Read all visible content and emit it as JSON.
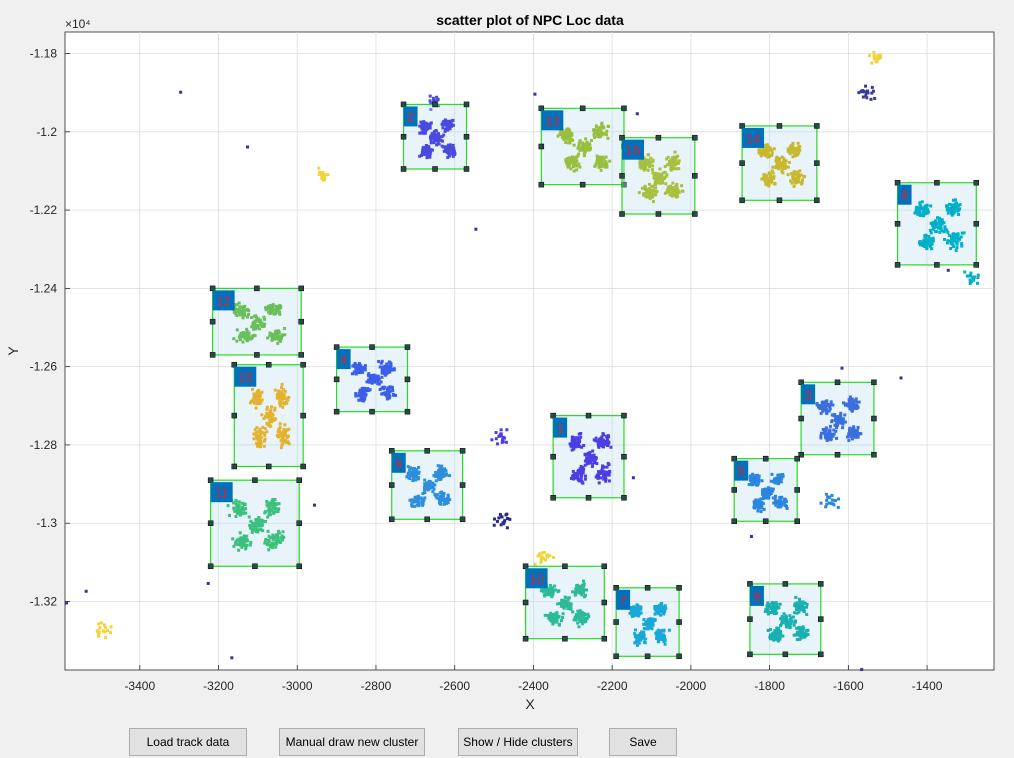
{
  "chart_data": {
    "type": "scatter",
    "title": "scatter plot of NPC Loc data",
    "xlabel": "X",
    "ylabel": "Y",
    "exponent_label": "×10⁴",
    "xlim": [
      -3590,
      -1230
    ],
    "ylim": [
      -1.3375,
      -1.1745
    ],
    "xticks": [
      -3400,
      -3200,
      -3000,
      -2800,
      -2600,
      -2400,
      -2200,
      -2000,
      -1800,
      -1600,
      -1400
    ],
    "yticks": [
      -1.32,
      -1.3,
      -1.28,
      -1.26,
      -1.24,
      -1.22,
      -1.2,
      -1.18
    ],
    "ytick_labels": [
      "-1.32",
      "-1.3",
      "-1.28",
      "-1.26",
      "-1.24",
      "-1.22",
      "-1.2",
      "-1.18"
    ],
    "grid": true,
    "clusters": [
      {
        "label": "1",
        "x": [
          -2350,
          -2170
        ],
        "y": [
          -1.2935,
          -1.2725
        ],
        "color": "#4b3fe3"
      },
      {
        "label": "2",
        "x": [
          -2730,
          -2570
        ],
        "y": [
          -1.2095,
          -1.193
        ],
        "color": "#4a4ae0"
      },
      {
        "label": "3",
        "x": [
          -1720,
          -1535
        ],
        "y": [
          -1.2825,
          -1.264
        ],
        "color": "#3a6fe0"
      },
      {
        "label": "4",
        "x": [
          -2900,
          -2720
        ],
        "y": [
          -1.2715,
          -1.255
        ],
        "color": "#3a5fe8"
      },
      {
        "label": "5",
        "x": [
          -1890,
          -1730
        ],
        "y": [
          -1.2995,
          -1.2835
        ],
        "color": "#2a86e0"
      },
      {
        "label": "6",
        "x": [
          -2760,
          -2580
        ],
        "y": [
          -1.299,
          -1.2815
        ],
        "color": "#2e8fdc"
      },
      {
        "label": "7",
        "x": [
          -2190,
          -2030
        ],
        "y": [
          -1.334,
          -1.3165
        ],
        "color": "#17a8d8"
      },
      {
        "label": "8",
        "x": [
          -1475,
          -1275
        ],
        "y": [
          -1.234,
          -1.213
        ],
        "color": "#00b0c8"
      },
      {
        "label": "9",
        "x": [
          -1850,
          -1670
        ],
        "y": [
          -1.3335,
          -1.3155
        ],
        "color": "#18b0b0"
      },
      {
        "label": "10",
        "x": [
          -2420,
          -2220
        ],
        "y": [
          -1.3295,
          -1.311
        ],
        "color": "#2cba98"
      },
      {
        "label": "11",
        "x": [
          -3220,
          -2995
        ],
        "y": [
          -1.311,
          -1.289
        ],
        "color": "#3cc07e"
      },
      {
        "label": "12",
        "x": [
          -3215,
          -2990
        ],
        "y": [
          -1.257,
          -1.24
        ],
        "color": "#6bbf5a"
      },
      {
        "label": "13",
        "x": [
          -2380,
          -2170
        ],
        "y": [
          -1.2135,
          -1.194
        ],
        "color": "#98c03e"
      },
      {
        "label": "14",
        "x": [
          -1870,
          -1680
        ],
        "y": [
          -1.2175,
          -1.1985
        ],
        "color": "#c8b830"
      },
      {
        "label": "15",
        "x": [
          -3160,
          -2985
        ],
        "y": [
          -1.2855,
          -1.2595
        ],
        "color": "#e3b330"
      },
      {
        "label": "16",
        "x": [
          -2175,
          -1990
        ],
        "y": [
          -1.221,
          -1.2015
        ],
        "color": "#a8c040"
      }
    ],
    "outlier_groups": [
      {
        "x": -2940,
        "y": -1.2105,
        "color": "#f2d43a"
      },
      {
        "x": -2655,
        "y": -1.192,
        "color": "#4a4ae0"
      },
      {
        "x": -2490,
        "y": -1.2775,
        "color": "#4b3fe3"
      },
      {
        "x": -2480,
        "y": -1.299,
        "color": "#2a2a8a"
      },
      {
        "x": -2380,
        "y": -1.3085,
        "color": "#f2d43a"
      },
      {
        "x": -1530,
        "y": -1.18,
        "color": "#f2d43a"
      },
      {
        "x": -1560,
        "y": -1.19,
        "color": "#3a3a9a"
      },
      {
        "x": -3500,
        "y": -1.3275,
        "color": "#f2d43a"
      },
      {
        "x": -1650,
        "y": -1.294,
        "color": "#2a86e0"
      },
      {
        "x": -1290,
        "y": -1.237,
        "color": "#00b0c8"
      }
    ]
  },
  "buttons": {
    "load": "Load track data",
    "draw": "Manual draw new cluster",
    "show": "Show / Hide clusters",
    "save": "Save"
  }
}
